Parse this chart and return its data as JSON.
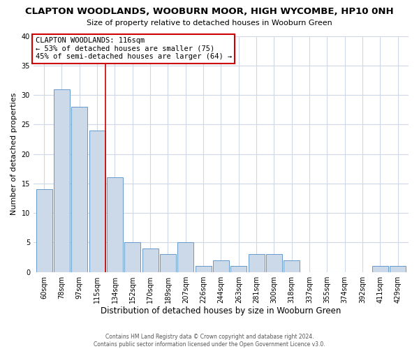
{
  "title": "CLAPTON WOODLANDS, WOOBURN MOOR, HIGH WYCOMBE, HP10 0NH",
  "subtitle": "Size of property relative to detached houses in Wooburn Green",
  "xlabel": "Distribution of detached houses by size in Wooburn Green",
  "ylabel": "Number of detached properties",
  "bar_color": "#ccd9e8",
  "bar_edge_color": "#6699cc",
  "bg_color": "#ffffff",
  "categories": [
    "60sqm",
    "78sqm",
    "97sqm",
    "115sqm",
    "134sqm",
    "152sqm",
    "170sqm",
    "189sqm",
    "207sqm",
    "226sqm",
    "244sqm",
    "263sqm",
    "281sqm",
    "300sqm",
    "318sqm",
    "337sqm",
    "355sqm",
    "374sqm",
    "392sqm",
    "411sqm",
    "429sqm"
  ],
  "values": [
    14,
    31,
    28,
    24,
    16,
    5,
    4,
    3,
    5,
    1,
    2,
    1,
    3,
    3,
    2,
    0,
    0,
    0,
    0,
    1,
    1
  ],
  "ylim": [
    0,
    40
  ],
  "marker_index": 3,
  "marker_color": "#cc0000",
  "annotation_title": "CLAPTON WOODLANDS: 116sqm",
  "annotation_line1": "← 53% of detached houses are smaller (75)",
  "annotation_line2": "45% of semi-detached houses are larger (64) →",
  "annotation_box_facecolor": "#ffffff",
  "annotation_box_edgecolor": "#cc0000",
  "footer1": "Contains HM Land Registry data © Crown copyright and database right 2024.",
  "footer2": "Contains public sector information licensed under the Open Government Licence v3.0."
}
